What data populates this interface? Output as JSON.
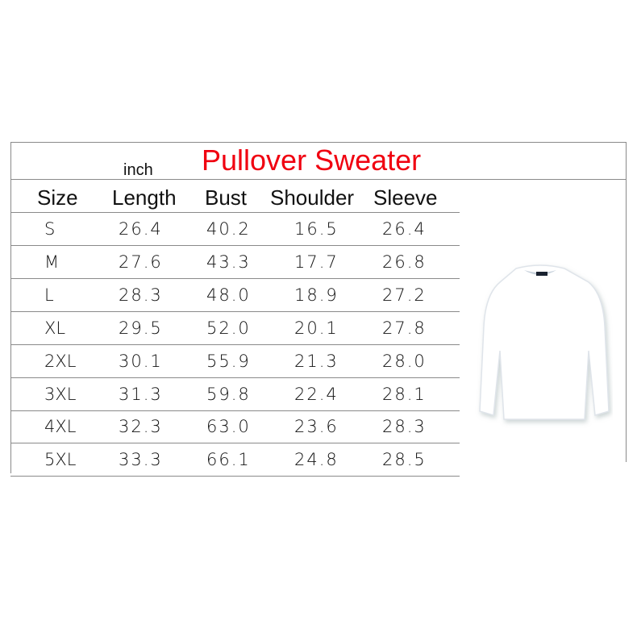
{
  "title": "Pullover Sweater",
  "unit": "inch",
  "headers": [
    "Size",
    "Length",
    "Bust",
    "Shoulder",
    "Sleeve"
  ],
  "rows": [
    [
      "S",
      "26.4",
      "40.2",
      "16.5",
      "26.4"
    ],
    [
      "M",
      "27.6",
      "43.3",
      "17.7",
      "26.8"
    ],
    [
      "L",
      "28.3",
      "48.0",
      "18.9",
      "27.2"
    ],
    [
      "XL",
      "29.5",
      "52.0",
      "20.1",
      "27.8"
    ],
    [
      "2XL",
      "30.1",
      "55.9",
      "21.3",
      "28.0"
    ],
    [
      "3XL",
      "31.3",
      "59.8",
      "22.4",
      "28.1"
    ],
    [
      "4XL",
      "32.3",
      "63.0",
      "23.6",
      "28.3"
    ],
    [
      "5XL",
      "33.3",
      "66.1",
      "24.8",
      "28.5"
    ]
  ],
  "colors": {
    "title": "#f00010",
    "garment": "#ffffff",
    "label": "#1a2230"
  },
  "image": "white-pullover-sweater"
}
